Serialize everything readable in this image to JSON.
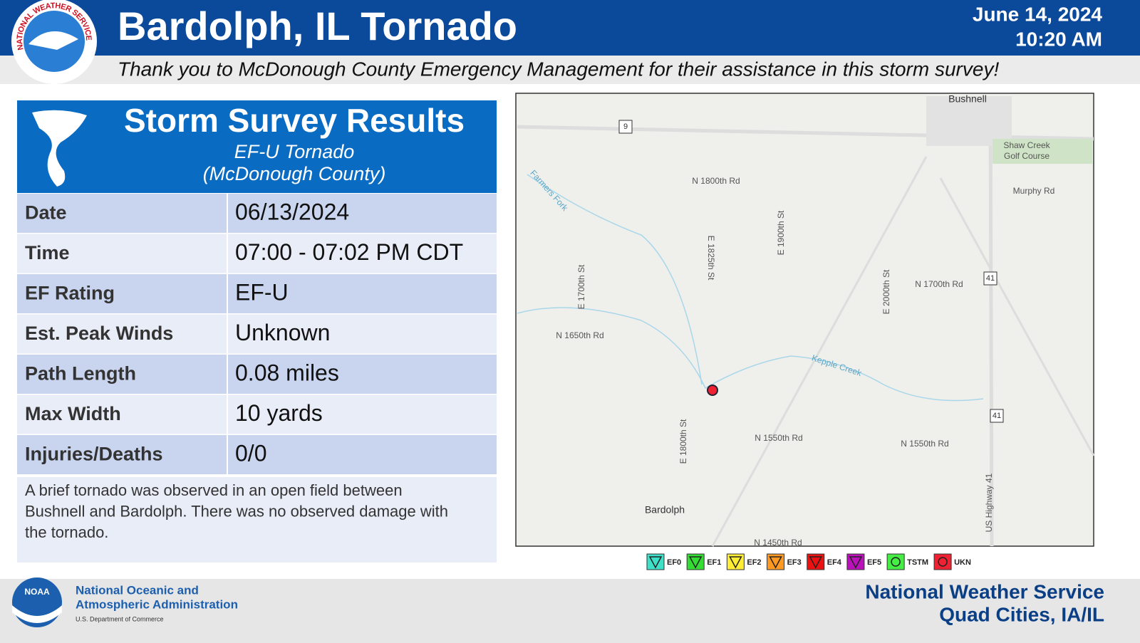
{
  "header": {
    "title": "Bardolph, IL Tornado",
    "date": "June 14, 2024",
    "time": "10:20 AM",
    "thanks": "Thank you to McDonough County Emergency Management for their assistance in this storm survey!",
    "logo_text": "NATIONAL WEATHER SERVICE"
  },
  "survey": {
    "title": "Storm Survey Results",
    "subtitle": "EF-U Tornado",
    "county": "(McDonough County)",
    "rows": [
      [
        "Date",
        "06/13/2024"
      ],
      [
        "Time",
        "07:00 - 07:02 PM CDT"
      ],
      [
        "EF Rating",
        "EF-U"
      ],
      [
        "Est. Peak Winds",
        "Unknown"
      ],
      [
        "Path Length",
        "0.08 miles"
      ],
      [
        "Max Width",
        "10 yards"
      ],
      [
        "Injuries/Deaths",
        "0/0"
      ]
    ],
    "description": "A brief tornado was observed in an open field between Bushnell and Bardolph. There was no observed damage with the tornado."
  },
  "map": {
    "labels": [
      "Bushnell",
      "Shaw Creek",
      "Golf Course",
      "Murphy Rd",
      "N 1800th Rd",
      "Farmers Fork",
      "E 1900th St",
      "E 1825th St",
      "N 1700th Rd",
      "E 1700th St",
      "E 2000th St",
      "N 1650th Rd",
      "Kepple Creek",
      "N 1550th Rd",
      "N 1550th Rd",
      "E 1800th St",
      "Bardolph",
      "US Highway 41",
      "N 1450th Rd",
      "9",
      "41",
      "41"
    ]
  },
  "legend": {
    "items": [
      {
        "label": "EF0",
        "color": "#3ee0c8"
      },
      {
        "label": "EF1",
        "color": "#33dd33"
      },
      {
        "label": "EF2",
        "color": "#ffee33"
      },
      {
        "label": "EF3",
        "color": "#ff9922"
      },
      {
        "label": "EF4",
        "color": "#ee1111"
      },
      {
        "label": "EF5",
        "color": "#bb11bb"
      },
      {
        "label": "TSTM",
        "color": "#44ee44"
      },
      {
        "label": "UKN",
        "color": "#ee2233"
      }
    ]
  },
  "footer": {
    "noaa": "NOAA",
    "agency_line1": "National Oceanic and",
    "agency_line2": "Atmospheric Administration",
    "department": "U.S. Department of Commerce",
    "office_line1": "National Weather Service",
    "office_line2": "Quad Cities, IA/IL"
  }
}
